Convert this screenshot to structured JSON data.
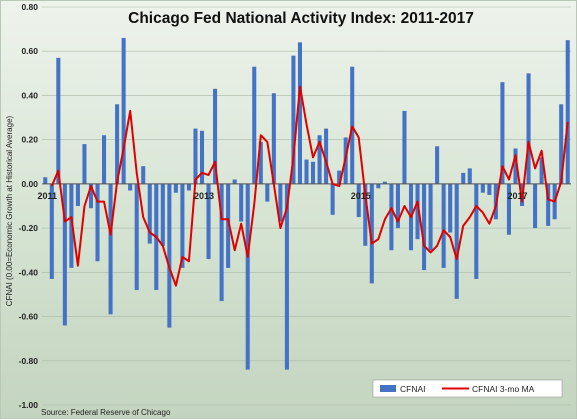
{
  "chart_data": {
    "type": "bar",
    "title": "Chicago Fed National Activity Index: 2011-2017",
    "ylabel": "CFNAI (0.00=Economic Growth at Historical Average)",
    "xlabel": "",
    "ylim": [
      -1.0,
      0.8
    ],
    "yticks": [
      "0.80",
      "0.60",
      "0.40",
      "0.20",
      "0.00",
      "-0.20",
      "-0.40",
      "-0.60",
      "-0.80",
      "-1.00"
    ],
    "ytick_values": [
      0.8,
      0.6,
      0.4,
      0.2,
      0.0,
      -0.2,
      -0.4,
      -0.6,
      -0.8,
      -1.0
    ],
    "xticks": [
      {
        "label": "2011",
        "index": 0
      },
      {
        "label": "2013",
        "index": 24
      },
      {
        "label": "2015",
        "index": 48
      },
      {
        "label": "2017",
        "index": 72
      }
    ],
    "grid": true,
    "legend": "bottom-right",
    "source": "Source: Federal Reserve of Chicago",
    "colors": {
      "bar": "#4472c4",
      "line": "#e00000"
    },
    "series": [
      {
        "name": "CFNAI",
        "type": "bar",
        "values": [
          0.03,
          -0.43,
          0.57,
          -0.64,
          -0.38,
          -0.1,
          0.18,
          -0.11,
          -0.35,
          0.22,
          -0.59,
          0.36,
          0.66,
          -0.03,
          -0.48,
          0.08,
          -0.27,
          -0.48,
          -0.28,
          -0.65,
          -0.04,
          -0.38,
          -0.03,
          0.25,
          0.24,
          -0.34,
          0.43,
          -0.53,
          -0.38,
          0.02,
          -0.17,
          -0.84,
          0.53,
          0.19,
          -0.08,
          0.41,
          -0.17,
          -0.84,
          0.58,
          0.64,
          0.11,
          0.1,
          0.22,
          0.25,
          -0.14,
          0.06,
          0.21,
          0.53,
          -0.15,
          -0.28,
          -0.45,
          -0.02,
          0.01,
          -0.3,
          -0.2,
          0.33,
          -0.3,
          -0.25,
          -0.39,
          -0.3,
          0.17,
          -0.38,
          -0.22,
          -0.52,
          0.05,
          0.07,
          -0.43,
          -0.04,
          -0.05,
          -0.16,
          0.46,
          -0.23,
          0.16,
          -0.1,
          0.5,
          -0.2,
          0.12,
          -0.19,
          -0.16,
          0.36,
          0.65
        ]
      },
      {
        "name": "CFNAI 3-mo MA",
        "type": "line",
        "values": [
          -0.01,
          0.06,
          -0.17,
          -0.15,
          -0.37,
          -0.1,
          -0.01,
          -0.08,
          -0.08,
          -0.23,
          0.01,
          0.16,
          0.33,
          0.05,
          -0.15,
          -0.22,
          -0.24,
          -0.28,
          -0.38,
          -0.46,
          -0.33,
          -0.35,
          0.02,
          0.05,
          0.04,
          0.1,
          -0.16,
          -0.16,
          -0.3,
          -0.18,
          -0.33,
          -0.09,
          0.22,
          0.19,
          0.0,
          -0.2,
          -0.11,
          0.12,
          0.44,
          0.27,
          0.12,
          0.19,
          0.1,
          0.0,
          -0.01,
          0.12,
          0.26,
          0.21,
          -0.05,
          -0.27,
          -0.25,
          -0.16,
          -0.11,
          -0.17,
          -0.1,
          -0.15,
          -0.08,
          -0.28,
          -0.31,
          -0.28,
          -0.21,
          -0.24,
          -0.34,
          -0.19,
          -0.15,
          -0.1,
          -0.13,
          -0.18,
          -0.1,
          0.08,
          0.02,
          0.13,
          -0.08,
          0.19,
          0.07,
          0.15,
          -0.07,
          -0.08,
          0.01,
          0.28
        ]
      }
    ]
  }
}
